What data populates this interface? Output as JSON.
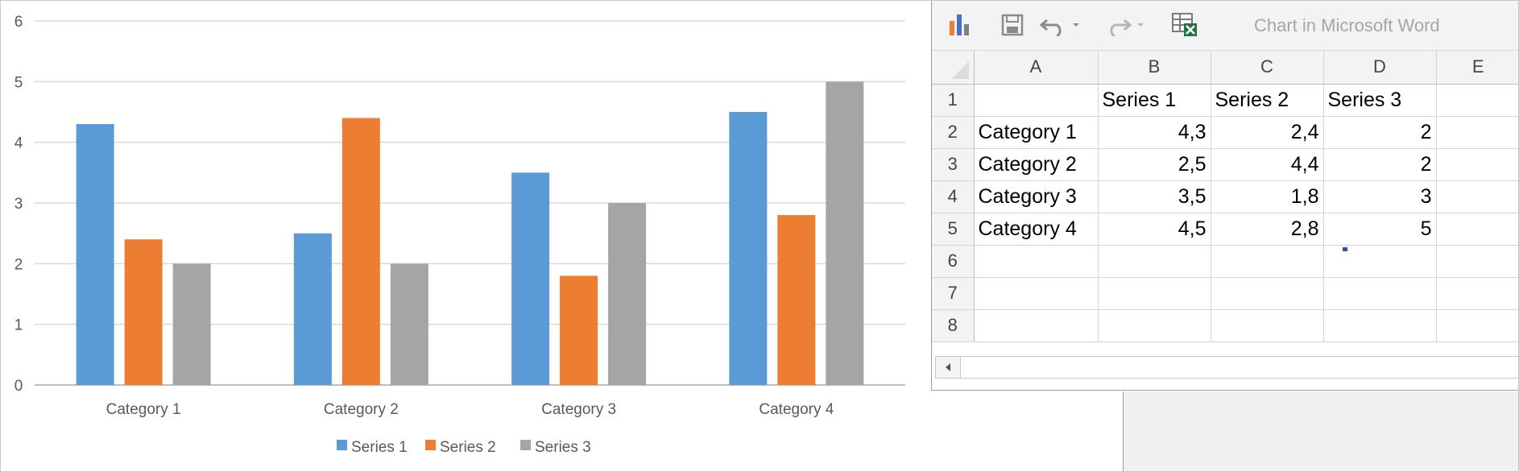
{
  "chart_data": {
    "type": "bar",
    "categories": [
      "Category 1",
      "Category 2",
      "Category 3",
      "Category 4"
    ],
    "series": [
      {
        "name": "Series 1",
        "values": [
          4.3,
          2.5,
          3.5,
          4.5
        ],
        "color": "#5b9bd5"
      },
      {
        "name": "Series 2",
        "values": [
          2.4,
          4.4,
          1.8,
          2.8
        ],
        "color": "#ed7d31"
      },
      {
        "name": "Series 3",
        "values": [
          2,
          2,
          3,
          5
        ],
        "color": "#a5a5a5"
      }
    ],
    "ylim": [
      0,
      6
    ],
    "yticks": [
      "0",
      "1",
      "2",
      "3",
      "4",
      "5",
      "6"
    ],
    "grid": true,
    "legend": "bottom"
  },
  "toolbar": {
    "title": "Chart in Microsoft Word",
    "icons": [
      "chart-icon",
      "save-icon",
      "undo-icon",
      "redo-icon",
      "edit-data-excel-icon"
    ]
  },
  "sheet": {
    "columns": [
      "A",
      "B",
      "C",
      "D",
      "E"
    ],
    "rows": [
      {
        "num": "1",
        "cells": [
          "",
          "Series 1",
          "Series 2",
          "Series 3",
          ""
        ]
      },
      {
        "num": "2",
        "cells": [
          "Category 1",
          "4,3",
          "2,4",
          "2",
          ""
        ]
      },
      {
        "num": "3",
        "cells": [
          "Category 2",
          "2,5",
          "4,4",
          "2",
          ""
        ]
      },
      {
        "num": "4",
        "cells": [
          "Category 3",
          "3,5",
          "1,8",
          "3",
          ""
        ]
      },
      {
        "num": "5",
        "cells": [
          "Category 4",
          "4,5",
          "2,8",
          "5",
          ""
        ]
      },
      {
        "num": "6",
        "cells": [
          "",
          "",
          "",
          "",
          ""
        ]
      },
      {
        "num": "7",
        "cells": [
          "",
          "",
          "",
          "",
          ""
        ]
      },
      {
        "num": "8",
        "cells": [
          "",
          "",
          "",
          "",
          ""
        ]
      }
    ]
  }
}
